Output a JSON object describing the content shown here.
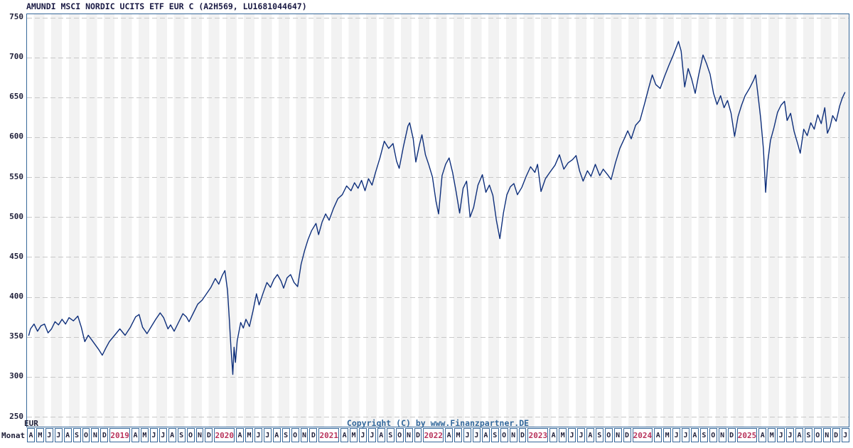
{
  "title": "AMUNDI MSCI NORDIC UCITS ETF EUR C (A2H569, LU1681044647)",
  "copyright": "Copyright (C) by www.Finanzpartner.DE",
  "axis": {
    "y_unit_label": "EUR",
    "x_axis_label": "Monat",
    "y_ticks": [
      750,
      700,
      650,
      600,
      550,
      500,
      450,
      400,
      350,
      300,
      250
    ],
    "x_cells": [
      "A",
      "M",
      "J",
      "J",
      "A",
      "S",
      "O",
      "N",
      "D",
      "2019",
      "A",
      "M",
      "J",
      "J",
      "A",
      "S",
      "O",
      "N",
      "D",
      "2020",
      "A",
      "M",
      "J",
      "J",
      "A",
      "S",
      "O",
      "N",
      "D",
      "2021",
      "A",
      "M",
      "J",
      "J",
      "A",
      "S",
      "O",
      "N",
      "D",
      "2022",
      "A",
      "M",
      "J",
      "J",
      "A",
      "S",
      "O",
      "N",
      "D",
      "2023",
      "A",
      "M",
      "J",
      "J",
      "A",
      "S",
      "O",
      "N",
      "D",
      "2024",
      "A",
      "M",
      "J",
      "J",
      "A",
      "S",
      "O",
      "N",
      "D",
      "2025",
      "A",
      "M",
      "J",
      "J",
      "A",
      "S",
      "O",
      "N",
      "D",
      "J"
    ]
  },
  "colors": {
    "line": "#0e2f7b",
    "border": "#36689a",
    "year_label": "#b8335c",
    "grid": "#c8c8c8",
    "stripe": "#f2f2f2",
    "title": "#1a1a44",
    "copyright": "#33689b"
  },
  "chart_data": {
    "type": "line",
    "title": "AMUNDI MSCI NORDIC UCITS ETF EUR C (A2H569, LU1681044647)",
    "xlabel": "Monat",
    "ylabel": "EUR",
    "ylim": [
      250,
      750
    ],
    "x_unit": "months since April 2018",
    "x_range": [
      "2018-04",
      "2026-01"
    ],
    "grid": "dashed horizontal every 50 EUR",
    "legend": "none",
    "series": [
      {
        "name": "AMUNDI MSCI NORDIC UCITS ETF EUR C",
        "points": [
          [
            0.2,
            352
          ],
          [
            0.4,
            360
          ],
          [
            0.8,
            366
          ],
          [
            1.2,
            357
          ],
          [
            1.6,
            364
          ],
          [
            2.0,
            366
          ],
          [
            2.4,
            355
          ],
          [
            2.8,
            360
          ],
          [
            3.2,
            369
          ],
          [
            3.6,
            365
          ],
          [
            4.0,
            372
          ],
          [
            4.4,
            366
          ],
          [
            4.8,
            374
          ],
          [
            5.3,
            370
          ],
          [
            5.8,
            376
          ],
          [
            6.2,
            362
          ],
          [
            6.6,
            344
          ],
          [
            7.0,
            352
          ],
          [
            7.4,
            346
          ],
          [
            7.8,
            340
          ],
          [
            8.2,
            334
          ],
          [
            8.6,
            327
          ],
          [
            9.0,
            336
          ],
          [
            9.4,
            344
          ],
          [
            10.0,
            352
          ],
          [
            10.6,
            360
          ],
          [
            11.2,
            352
          ],
          [
            11.8,
            362
          ],
          [
            12.4,
            375
          ],
          [
            12.8,
            378
          ],
          [
            13.2,
            362
          ],
          [
            13.7,
            354
          ],
          [
            14.2,
            363
          ],
          [
            14.7,
            372
          ],
          [
            15.2,
            380
          ],
          [
            15.6,
            374
          ],
          [
            16.1,
            360
          ],
          [
            16.4,
            365
          ],
          [
            16.8,
            357
          ],
          [
            17.3,
            368
          ],
          [
            17.8,
            379
          ],
          [
            18.2,
            375
          ],
          [
            18.5,
            369
          ],
          [
            19.0,
            380
          ],
          [
            19.5,
            391
          ],
          [
            20.0,
            396
          ],
          [
            20.5,
            404
          ],
          [
            21.0,
            412
          ],
          [
            21.5,
            423
          ],
          [
            21.9,
            416
          ],
          [
            22.3,
            427
          ],
          [
            22.6,
            433
          ],
          [
            22.9,
            408
          ],
          [
            23.1,
            372
          ],
          [
            23.3,
            335
          ],
          [
            23.5,
            303
          ],
          [
            23.65,
            337
          ],
          [
            23.8,
            318
          ],
          [
            24.0,
            345
          ],
          [
            24.4,
            368
          ],
          [
            24.7,
            361
          ],
          [
            25.0,
            372
          ],
          [
            25.4,
            363
          ],
          [
            25.8,
            382
          ],
          [
            26.2,
            404
          ],
          [
            26.5,
            390
          ],
          [
            27.0,
            406
          ],
          [
            27.4,
            418
          ],
          [
            27.8,
            412
          ],
          [
            28.2,
            422
          ],
          [
            28.6,
            428
          ],
          [
            29.0,
            420
          ],
          [
            29.3,
            411
          ],
          [
            29.7,
            424
          ],
          [
            30.1,
            428
          ],
          [
            30.5,
            418
          ],
          [
            30.9,
            413
          ],
          [
            31.3,
            441
          ],
          [
            31.7,
            458
          ],
          [
            32.1,
            472
          ],
          [
            32.5,
            483
          ],
          [
            33.0,
            492
          ],
          [
            33.3,
            478
          ],
          [
            33.7,
            494
          ],
          [
            34.1,
            504
          ],
          [
            34.5,
            496
          ],
          [
            35.0,
            511
          ],
          [
            35.5,
            523
          ],
          [
            36.0,
            528
          ],
          [
            36.5,
            539
          ],
          [
            37.0,
            533
          ],
          [
            37.4,
            543
          ],
          [
            37.8,
            536
          ],
          [
            38.2,
            546
          ],
          [
            38.6,
            533
          ],
          [
            39.0,
            548
          ],
          [
            39.4,
            540
          ],
          [
            39.8,
            556
          ],
          [
            40.3,
            574
          ],
          [
            40.8,
            595
          ],
          [
            41.3,
            586
          ],
          [
            41.8,
            592
          ],
          [
            42.2,
            570
          ],
          [
            42.5,
            561
          ],
          [
            43.0,
            589
          ],
          [
            43.5,
            614
          ],
          [
            43.7,
            618
          ],
          [
            44.1,
            598
          ],
          [
            44.4,
            569
          ],
          [
            44.8,
            590
          ],
          [
            45.1,
            603
          ],
          [
            45.5,
            578
          ],
          [
            45.9,
            565
          ],
          [
            46.3,
            550
          ],
          [
            46.7,
            520
          ],
          [
            47.0,
            504
          ],
          [
            47.4,
            552
          ],
          [
            47.8,
            566
          ],
          [
            48.2,
            574
          ],
          [
            48.6,
            556
          ],
          [
            49.0,
            532
          ],
          [
            49.4,
            505
          ],
          [
            49.8,
            536
          ],
          [
            50.2,
            545
          ],
          [
            50.6,
            500
          ],
          [
            51.0,
            512
          ],
          [
            51.5,
            540
          ],
          [
            52.0,
            553
          ],
          [
            52.4,
            531
          ],
          [
            52.8,
            540
          ],
          [
            53.2,
            527
          ],
          [
            53.6,
            496
          ],
          [
            54.0,
            473
          ],
          [
            54.4,
            505
          ],
          [
            54.8,
            528
          ],
          [
            55.2,
            538
          ],
          [
            55.6,
            542
          ],
          [
            56.0,
            528
          ],
          [
            56.5,
            537
          ],
          [
            57.0,
            551
          ],
          [
            57.5,
            563
          ],
          [
            58.0,
            556
          ],
          [
            58.3,
            566
          ],
          [
            58.7,
            532
          ],
          [
            59.2,
            548
          ],
          [
            59.7,
            556
          ],
          [
            60.3,
            565
          ],
          [
            60.8,
            578
          ],
          [
            61.3,
            560
          ],
          [
            61.8,
            568
          ],
          [
            62.3,
            572
          ],
          [
            62.7,
            577
          ],
          [
            63.1,
            558
          ],
          [
            63.5,
            545
          ],
          [
            64.0,
            558
          ],
          [
            64.4,
            551
          ],
          [
            64.9,
            566
          ],
          [
            65.4,
            552
          ],
          [
            65.8,
            560
          ],
          [
            66.3,
            553
          ],
          [
            66.7,
            547
          ],
          [
            67.2,
            568
          ],
          [
            67.7,
            586
          ],
          [
            68.2,
            598
          ],
          [
            68.6,
            608
          ],
          [
            69.0,
            598
          ],
          [
            69.5,
            615
          ],
          [
            70.0,
            621
          ],
          [
            70.5,
            641
          ],
          [
            71.0,
            662
          ],
          [
            71.4,
            678
          ],
          [
            71.8,
            666
          ],
          [
            72.3,
            661
          ],
          [
            72.8,
            676
          ],
          [
            73.3,
            690
          ],
          [
            73.8,
            703
          ],
          [
            74.4,
            720
          ],
          [
            74.7,
            708
          ],
          [
            75.1,
            663
          ],
          [
            75.5,
            686
          ],
          [
            75.9,
            673
          ],
          [
            76.3,
            655
          ],
          [
            76.7,
            678
          ],
          [
            77.2,
            703
          ],
          [
            77.6,
            692
          ],
          [
            78.0,
            679
          ],
          [
            78.4,
            655
          ],
          [
            78.8,
            641
          ],
          [
            79.2,
            652
          ],
          [
            79.6,
            637
          ],
          [
            80.0,
            646
          ],
          [
            80.4,
            630
          ],
          [
            80.8,
            601
          ],
          [
            81.2,
            626
          ],
          [
            81.6,
            640
          ],
          [
            82.0,
            652
          ],
          [
            82.5,
            661
          ],
          [
            83.0,
            672
          ],
          [
            83.2,
            678
          ],
          [
            83.5,
            651
          ],
          [
            83.8,
            622
          ],
          [
            84.1,
            585
          ],
          [
            84.35,
            531
          ],
          [
            84.6,
            570
          ],
          [
            84.9,
            596
          ],
          [
            85.3,
            612
          ],
          [
            85.7,
            631
          ],
          [
            86.1,
            640
          ],
          [
            86.5,
            645
          ],
          [
            86.8,
            621
          ],
          [
            87.2,
            630
          ],
          [
            87.6,
            607
          ],
          [
            88.0,
            592
          ],
          [
            88.3,
            580
          ],
          [
            88.7,
            610
          ],
          [
            89.1,
            602
          ],
          [
            89.5,
            618
          ],
          [
            89.9,
            610
          ],
          [
            90.3,
            628
          ],
          [
            90.7,
            617
          ],
          [
            91.1,
            637
          ],
          [
            91.4,
            605
          ],
          [
            91.7,
            613
          ],
          [
            92.0,
            627
          ],
          [
            92.4,
            620
          ],
          [
            92.8,
            639
          ],
          [
            93.1,
            649
          ],
          [
            93.4,
            656
          ]
        ]
      }
    ]
  }
}
